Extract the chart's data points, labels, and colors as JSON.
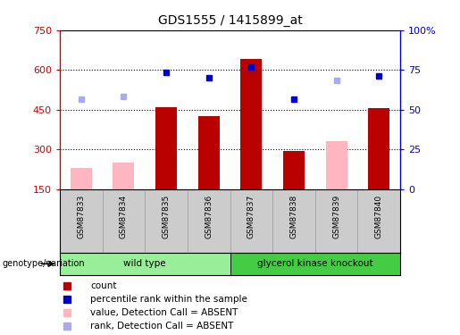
{
  "title": "GDS1555 / 1415899_at",
  "samples": [
    "GSM87833",
    "GSM87834",
    "GSM87835",
    "GSM87836",
    "GSM87837",
    "GSM87838",
    "GSM87839",
    "GSM87840"
  ],
  "groups": [
    {
      "label": "wild type",
      "samples": [
        0,
        1,
        2,
        3
      ],
      "color": "#99EE99"
    },
    {
      "label": "glycerol kinase knockout",
      "samples": [
        4,
        5,
        6,
        7
      ],
      "color": "#44CC44"
    }
  ],
  "count_values": [
    null,
    null,
    460,
    425,
    640,
    295,
    null,
    455
  ],
  "count_absent": [
    230,
    250,
    null,
    null,
    null,
    null,
    330,
    null
  ],
  "percentile_rank": [
    null,
    null,
    590,
    570,
    610,
    490,
    null,
    578
  ],
  "percentile_rank_absent": [
    490,
    500,
    null,
    null,
    null,
    null,
    560,
    null
  ],
  "ylim_left": [
    150,
    750
  ],
  "ylim_right": [
    0,
    100
  ],
  "yticks_left": [
    150,
    300,
    450,
    600,
    750
  ],
  "yticks_right": [
    0,
    25,
    50,
    75,
    100
  ],
  "ytick_labels_right": [
    "0",
    "25",
    "50",
    "75",
    "100%"
  ],
  "hlines": [
    300,
    450,
    600
  ],
  "bar_width": 0.5,
  "count_color": "#BB0000",
  "count_absent_color": "#FFB6C1",
  "rank_color": "#0000CC",
  "rank_absent_color": "#AAAAEE",
  "legend_items": [
    {
      "label": "count",
      "color": "#BB0000"
    },
    {
      "label": "percentile rank within the sample",
      "color": "#0000CC"
    },
    {
      "label": "value, Detection Call = ABSENT",
      "color": "#FFB6C1"
    },
    {
      "label": "rank, Detection Call = ABSENT",
      "color": "#AAAAEE"
    }
  ],
  "xlabel_label": "genotype/variation",
  "background_color": "#ffffff",
  "plot_bg_color": "#ffffff",
  "left_axis_color": "#CC0000",
  "right_axis_color": "#0000CC",
  "sample_bg_color": "#CCCCCC",
  "sample_divider_color": "#999999"
}
